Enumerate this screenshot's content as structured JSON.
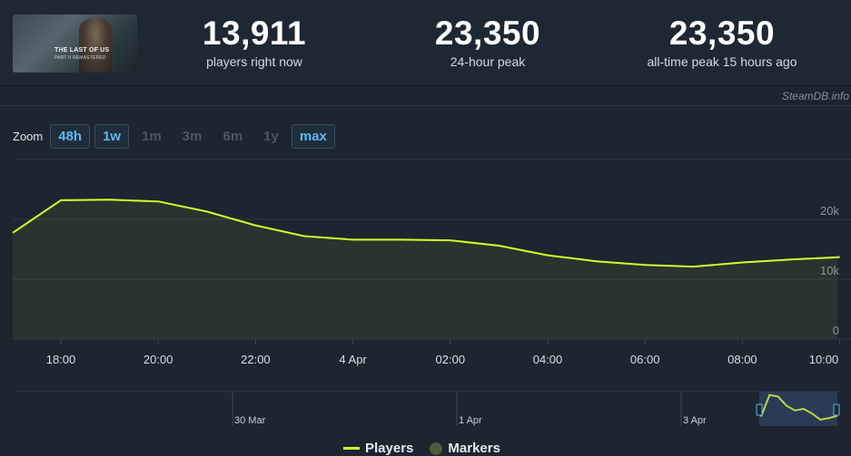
{
  "game": {
    "title_line1": "THE LAST OF US",
    "title_line2": "PART II REMASTERED",
    "image_icon": "game-cover-image"
  },
  "stats": [
    {
      "value": "13,911",
      "label": "players right now"
    },
    {
      "value": "23,350",
      "label": "24-hour peak"
    },
    {
      "value": "23,350",
      "label": "all-time peak 15 hours ago"
    }
  ],
  "credit": "SteamDB.info",
  "zoom": {
    "label": "Zoom",
    "buttons": [
      {
        "label": "48h",
        "active": true
      },
      {
        "label": "1w",
        "active": true
      },
      {
        "label": "1m",
        "active": false
      },
      {
        "label": "3m",
        "active": false
      },
      {
        "label": "6m",
        "active": false
      },
      {
        "label": "1y",
        "active": false
      },
      {
        "label": "max",
        "active": true
      }
    ]
  },
  "navigator": {
    "labels": [
      "30 Mar",
      "1 Apr",
      "3 Apr"
    ]
  },
  "legend": {
    "players": "Players",
    "markers": "Markers"
  },
  "colors": {
    "line": "#d4ff2a",
    "accent": "#5eb7f1",
    "background": "#1b2430"
  },
  "chart_data": {
    "type": "line",
    "x_ticks": [
      "18:00",
      "20:00",
      "22:00",
      "4 Apr",
      "02:00",
      "04:00",
      "06:00",
      "08:00",
      "10:00"
    ],
    "y_ticks": [
      "0",
      "10k",
      "20k"
    ],
    "ylim": [
      0,
      30000
    ],
    "series": [
      {
        "name": "Players",
        "x_hours": [
          -1,
          0,
          1,
          2,
          3,
          4,
          5,
          6,
          7,
          8,
          9,
          10,
          11,
          12,
          13,
          14,
          15,
          16,
          17
        ],
        "values": [
          17700,
          23200,
          23300,
          23000,
          21300,
          19000,
          17200,
          16600,
          16600,
          16500,
          15600,
          14000,
          13000,
          12400,
          12100,
          12800,
          13300,
          13700,
          13911
        ]
      }
    ],
    "navigator_series": [
      0.25,
      0.95,
      0.9,
      0.6,
      0.45,
      0.5,
      0.35,
      0.15,
      0.2,
      0.28
    ]
  }
}
